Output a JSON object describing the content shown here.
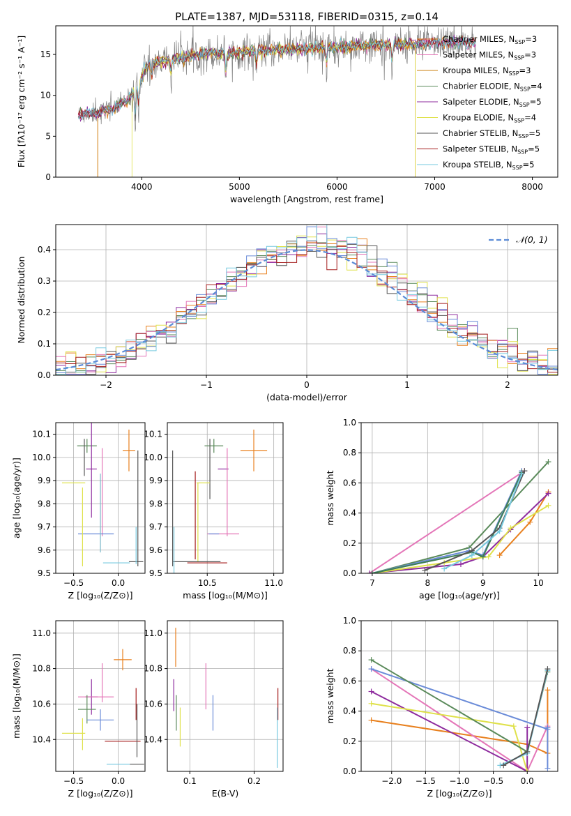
{
  "colors": {
    "grid": "#b0b0b0",
    "gaussian": "#5b8bd6",
    "series": [
      "#e8801e",
      "#e476b8",
      "#cb7f0d",
      "#5a8a5a",
      "#8e2b9e",
      "#dfe14a",
      "#555555",
      "#a41c1c",
      "#76c9df",
      "#6a8bd8",
      "#79b6c9",
      "#3f7f55"
    ]
  },
  "chart_data": [
    {
      "id": "spectrum",
      "type": "line",
      "title": "PLATE=1387, MJD=53118, FIBERID=0315, z=0.14",
      "xlabel": "wavelength [Angstrom, rest frame]",
      "ylabel": "Flux [fλ10⁻¹⁷ erg cm⁻² s⁻¹ A⁻¹]",
      "xlim": [
        3120,
        8260
      ],
      "ylim": [
        0,
        18.5
      ],
      "xticks": [
        4000,
        5000,
        6000,
        7000,
        8000
      ],
      "yticks": [
        0,
        5,
        10,
        15
      ],
      "grid": false,
      "legend_loc": "upper right",
      "legend": [
        "Chabrier MILES, N_SSP=3",
        "Salpeter MILES, N_SSP=3",
        "Kroupa MILES, N_SSP=3",
        "Chabrier ELODIE, N_SSP=4",
        "Salpeter ELODIE, N_SSP=5",
        "Kroupa ELODIE, N_SSP=4",
        "Chabrier STELIB, N_SSP=5",
        "Salpeter STELIB, N_SSP=5",
        "Kroupa STELIB, N_SSP=5"
      ],
      "legend_colors": [
        "#e8801e",
        "#e476b8",
        "#cb7f0d",
        "#5a8a5a",
        "#8e2b9e",
        "#dfe14a",
        "#555555",
        "#a41c1c",
        "#76c9df"
      ],
      "continuum_x": [
        3350,
        3550,
        3700,
        3850,
        3950,
        4050,
        4200,
        4400,
        4600,
        4800,
        5000,
        5300,
        5600,
        5900,
        6200,
        6500,
        6800,
        7000,
        7200,
        7400
      ],
      "continuum_y": [
        7.6,
        7.9,
        8.3,
        9.3,
        11.0,
        13.5,
        14.2,
        14.7,
        15.0,
        15.2,
        15.3,
        15.5,
        15.7,
        15.8,
        16.0,
        16.2,
        16.3,
        16.4,
        16.5,
        16.4
      ],
      "obs_range": [
        3350,
        7420
      ],
      "model_cutoffs": [
        {
          "series": 0,
          "range": [
            3550,
            7420
          ]
        },
        {
          "series": 5,
          "range": [
            3900,
            6800
          ]
        },
        {
          "series": 2,
          "range": [
            3550,
            6800
          ]
        }
      ]
    },
    {
      "id": "residuals",
      "type": "histogram",
      "xlabel": "(data-model)/error",
      "ylabel": "Normed distribution",
      "xlim": [
        -2.5,
        2.5
      ],
      "ylim": [
        0,
        0.48
      ],
      "xticks": [
        -2,
        -1,
        0,
        1,
        2
      ],
      "yticks": [
        0,
        0.1,
        0.2,
        0.3,
        0.4
      ],
      "grid": true,
      "legend_loc": "upper right",
      "legend": [
        "𝒩(0, 1)"
      ],
      "bin_width": 0.1,
      "bin_start": -2.5
    },
    {
      "id": "age-vs-Z",
      "type": "errorbar",
      "xlabel": "Z [log₁₀(Z/Z⊙)]",
      "ylabel": "age  [log₁₀(age/yr)]",
      "xlim": [
        -0.7,
        0.3
      ],
      "ylim": [
        9.5,
        10.15
      ],
      "xticks": [
        -0.5,
        0.0
      ],
      "yticks": [
        9.5,
        9.6,
        9.7,
        9.8,
        9.9,
        10.0,
        10.1
      ],
      "grid": true,
      "points": [
        {
          "x": 0.12,
          "y": 10.03,
          "xerr": 0.07,
          "yerr": 0.09,
          "c": 0
        },
        {
          "x": -0.35,
          "y": 10.05,
          "xerr": 0.11,
          "yerr": 0.03,
          "c": 3
        },
        {
          "x": -0.38,
          "y": 10.0,
          "xerr": 0.0,
          "yerr": 0.08,
          "c": 6
        },
        {
          "x": -0.3,
          "y": 9.95,
          "xerr": 0.06,
          "yerr": 0.21,
          "c": 4
        },
        {
          "x": -0.18,
          "y": 9.85,
          "xerr": 0.0,
          "yerr": 0.19,
          "c": 1
        },
        {
          "x": -0.5,
          "y": 9.89,
          "xerr": 0.13,
          "yerr": 0.0,
          "c": 5
        },
        {
          "x": -0.25,
          "y": 9.67,
          "xerr": 0.2,
          "yerr": 0.0,
          "c": 9
        },
        {
          "x": -0.4,
          "y": 9.7,
          "xerr": 0.0,
          "yerr": 0.17,
          "c": 5
        },
        {
          "x": -0.2,
          "y": 9.76,
          "xerr": 0.0,
          "yerr": 0.17,
          "c": 10
        },
        {
          "x": 0.22,
          "y": 9.78,
          "xerr": 0.0,
          "yerr": 0.25,
          "c": 6
        },
        {
          "x": 0.2,
          "y": 9.55,
          "xerr": 0.08,
          "yerr": 0.0,
          "c": 6
        },
        {
          "x": -0.02,
          "y": 9.545,
          "xerr": 0.15,
          "yerr": 0.0,
          "c": 8
        },
        {
          "x": 0.2,
          "y": 9.62,
          "xerr": 0.0,
          "yerr": 0.08,
          "c": 8
        }
      ]
    },
    {
      "id": "age-vs-mass",
      "type": "errorbar",
      "xlabel": "mass [log₁₀(M/M⊙)]",
      "ylabel": "",
      "xlim": [
        10.2,
        11.07
      ],
      "ylim": [
        9.5,
        10.15
      ],
      "xticks": [
        10.5,
        11.0
      ],
      "yticks": [
        9.5,
        9.6,
        9.7,
        9.8,
        9.9,
        10.0,
        10.1
      ],
      "grid": true,
      "points": [
        {
          "x": 10.85,
          "y": 10.03,
          "xerr": 0.1,
          "yerr": 0.09,
          "c": 0
        },
        {
          "x": 10.55,
          "y": 10.05,
          "xerr": 0.07,
          "yerr": 0.03,
          "c": 3
        },
        {
          "x": 10.52,
          "y": 9.95,
          "xerr": 0.0,
          "yerr": 0.13,
          "c": 6
        },
        {
          "x": 10.62,
          "y": 9.95,
          "xerr": 0.04,
          "yerr": 0.0,
          "c": 4
        },
        {
          "x": 10.65,
          "y": 9.85,
          "xerr": 0.0,
          "yerr": 0.19,
          "c": 1
        },
        {
          "x": 10.47,
          "y": 9.89,
          "xerr": 0.05,
          "yerr": 0.0,
          "c": 5
        },
        {
          "x": 10.62,
          "y": 9.67,
          "xerr": 0.12,
          "yerr": 0.0,
          "c": 1
        },
        {
          "x": 10.55,
          "y": 9.67,
          "xerr": 0.04,
          "yerr": 0.0,
          "c": 9
        },
        {
          "x": 10.43,
          "y": 9.72,
          "xerr": 0.0,
          "yerr": 0.17,
          "c": 5
        },
        {
          "x": 10.41,
          "y": 9.75,
          "xerr": 0.0,
          "yerr": 0.19,
          "c": 7
        },
        {
          "x": 10.24,
          "y": 9.78,
          "xerr": 0.0,
          "yerr": 0.25,
          "c": 6
        },
        {
          "x": 10.42,
          "y": 9.55,
          "xerr": 0.18,
          "yerr": 0.0,
          "c": 6
        },
        {
          "x": 10.5,
          "y": 9.545,
          "xerr": 0.15,
          "yerr": 0.0,
          "c": 7
        },
        {
          "x": 10.25,
          "y": 9.6,
          "xerr": 0.0,
          "yerr": 0.1,
          "c": 8
        }
      ]
    },
    {
      "id": "mass-weight-vs-age",
      "type": "line",
      "xlabel": "age  [log₁₀(age/yr)]",
      "ylabel": "mass weight",
      "xlim": [
        6.8,
        10.35
      ],
      "ylim": [
        0,
        1.0
      ],
      "xticks": [
        7,
        8,
        9,
        10
      ],
      "yticks": [
        0.0,
        0.2,
        0.4,
        0.6,
        0.8,
        1.0
      ],
      "grid": true,
      "series": [
        {
          "c": 0,
          "x": [
            9.3,
            9.85,
            10.18
          ],
          "y": [
            0.12,
            0.34,
            0.54
          ]
        },
        {
          "c": 1,
          "x": [
            6.95,
            9.75
          ],
          "y": [
            0.0,
            0.68
          ]
        },
        {
          "c": 3,
          "x": [
            7.0,
            8.75,
            10.18
          ],
          "y": [
            0.0,
            0.17,
            0.74
          ]
        },
        {
          "c": 4,
          "x": [
            6.95,
            8.6,
            9.0,
            9.5,
            10.18
          ],
          "y": [
            0.0,
            0.06,
            0.11,
            0.29,
            0.53
          ]
        },
        {
          "c": 5,
          "x": [
            7.0,
            8.3,
            9.1,
            9.5,
            10.18
          ],
          "y": [
            0.0,
            0.07,
            0.11,
            0.3,
            0.45
          ]
        },
        {
          "c": 9,
          "x": [
            7.0,
            8.75,
            9.0,
            9.7
          ],
          "y": [
            0.0,
            0.15,
            0.12,
            0.68
          ]
        },
        {
          "c": 11,
          "x": [
            7.0,
            8.8,
            9.0,
            9.7
          ],
          "y": [
            0.0,
            0.14,
            0.11,
            0.67
          ]
        },
        {
          "c": 6,
          "x": [
            7.95,
            8.8,
            9.3,
            9.75
          ],
          "y": [
            0.02,
            0.15,
            0.3,
            0.68
          ]
        },
        {
          "c": 8,
          "x": [
            8.3,
            8.8,
            9.3,
            9.7
          ],
          "y": [
            0.03,
            0.12,
            0.28,
            0.66
          ]
        }
      ]
    },
    {
      "id": "mass-vs-Z",
      "type": "errorbar",
      "xlabel": "Z [log₁₀(Z/Z⊙)]",
      "ylabel": "mass [log₁₀(M/M⊙)]",
      "xlim": [
        -0.7,
        0.3
      ],
      "ylim": [
        10.22,
        11.07
      ],
      "xticks": [
        -0.5,
        0.0
      ],
      "yticks": [
        10.4,
        10.6,
        10.8,
        11.0
      ],
      "grid": true,
      "points": [
        {
          "x": 0.05,
          "y": 10.85,
          "xerr": 0.1,
          "yerr": 0.06,
          "c": 0
        },
        {
          "x": -0.3,
          "y": 10.64,
          "xerr": 0.07,
          "yerr": 0.1,
          "c": 4
        },
        {
          "x": -0.25,
          "y": 10.64,
          "xerr": 0.2,
          "yerr": 0.0,
          "c": 1
        },
        {
          "x": -0.18,
          "y": 10.72,
          "xerr": 0.0,
          "yerr": 0.11,
          "c": 1
        },
        {
          "x": -0.35,
          "y": 10.57,
          "xerr": 0.1,
          "yerr": 0.08,
          "c": 3
        },
        {
          "x": -0.2,
          "y": 10.51,
          "xerr": 0.15,
          "yerr": 0.06,
          "c": 9
        },
        {
          "x": -0.4,
          "y": 10.43,
          "xerr": 0.0,
          "yerr": 0.09,
          "c": 5
        },
        {
          "x": -0.5,
          "y": 10.435,
          "xerr": 0.13,
          "yerr": 0.0,
          "c": 5
        },
        {
          "x": 0.2,
          "y": 10.6,
          "xerr": 0.0,
          "yerr": 0.09,
          "c": 7
        },
        {
          "x": 0.05,
          "y": 10.39,
          "xerr": 0.2,
          "yerr": 0.0,
          "c": 7
        },
        {
          "x": 0.21,
          "y": 10.45,
          "xerr": 0.0,
          "yerr": 0.15,
          "c": 6
        },
        {
          "x": 0.0,
          "y": 10.26,
          "xerr": 0.13,
          "yerr": 0.0,
          "c": 8
        },
        {
          "x": 0.21,
          "y": 10.26,
          "xerr": 0.08,
          "yerr": 0.0,
          "c": 6
        }
      ]
    },
    {
      "id": "mass-vs-ebv",
      "type": "errorbar",
      "xlabel": "E(B-V)",
      "ylabel": "",
      "xlim": [
        0.065,
        0.245
      ],
      "ylim": [
        10.22,
        11.07
      ],
      "xticks": [
        0.1,
        0.2
      ],
      "yticks": [
        10.4,
        10.6,
        10.8,
        11.0
      ],
      "grid": true,
      "points": [
        {
          "x": 0.078,
          "y": 10.92,
          "xerr": 0.0,
          "yerr": 0.11,
          "c": 0
        },
        {
          "x": 0.075,
          "y": 10.65,
          "xerr": 0.0,
          "yerr": 0.09,
          "c": 4
        },
        {
          "x": 0.079,
          "y": 10.55,
          "xerr": 0.0,
          "yerr": 0.1,
          "c": 3
        },
        {
          "x": 0.085,
          "y": 10.47,
          "xerr": 0.0,
          "yerr": 0.11,
          "c": 5
        },
        {
          "x": 0.125,
          "y": 10.7,
          "xerr": 0.0,
          "yerr": 0.13,
          "c": 1
        },
        {
          "x": 0.136,
          "y": 10.55,
          "xerr": 0.0,
          "yerr": 0.1,
          "c": 9
        },
        {
          "x": 0.237,
          "y": 10.6,
          "xerr": 0.0,
          "yerr": 0.09,
          "c": 7
        },
        {
          "x": 0.236,
          "y": 10.41,
          "xerr": 0.0,
          "yerr": 0.17,
          "c": 8
        }
      ]
    },
    {
      "id": "mass-weight-vs-Z",
      "type": "line",
      "xlabel": "Z [log₁₀(Z/Z⊙)]",
      "ylabel": "mass weight",
      "xlim": [
        -2.45,
        0.45
      ],
      "ylim": [
        0,
        1.0
      ],
      "xticks": [
        -2.0,
        -1.5,
        -1.0,
        -0.5,
        0.0
      ],
      "yticks": [
        0.0,
        0.2,
        0.4,
        0.6,
        0.8,
        1.0
      ],
      "grid": true,
      "series": [
        {
          "c": 0,
          "x": [
            -2.3,
            0.0,
            0.3,
            0.3
          ],
          "y": [
            0.34,
            0.18,
            0.12,
            0.54
          ]
        },
        {
          "c": 1,
          "x": [
            -2.3,
            0.0,
            0.3
          ],
          "y": [
            0.68,
            0.0,
            0.3
          ]
        },
        {
          "c": 4,
          "x": [
            -2.3,
            0.0,
            0.0
          ],
          "y": [
            0.53,
            0.0,
            0.29
          ]
        },
        {
          "c": 5,
          "x": [
            -2.3,
            -0.2,
            0.0
          ],
          "y": [
            0.45,
            0.3,
            0.0
          ]
        },
        {
          "c": 9,
          "x": [
            0.3,
            -2.3
          ],
          "y": [
            0.28,
            0.68
          ]
        },
        {
          "c": 3,
          "x": [
            -2.3,
            0.0,
            0.3
          ],
          "y": [
            0.74,
            0.13,
            0.66
          ]
        },
        {
          "c": 8,
          "x": [
            -0.4,
            0.0,
            0.3
          ],
          "y": [
            0.04,
            0.12,
            0.67
          ]
        },
        {
          "c": 6,
          "x": [
            -0.35,
            0.0,
            0.3
          ],
          "y": [
            0.04,
            0.13,
            0.68
          ]
        },
        {
          "c": 9,
          "x": [
            0.3,
            0.3
          ],
          "y": [
            0.02,
            0.29
          ]
        }
      ]
    }
  ]
}
